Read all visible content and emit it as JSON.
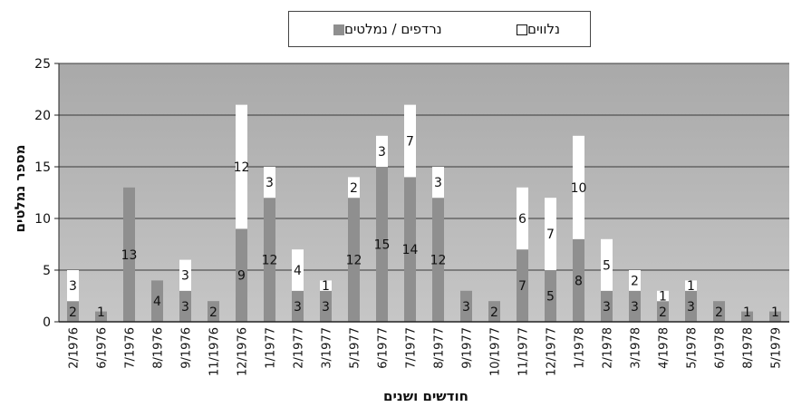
{
  "chart_data": {
    "type": "bar",
    "stacked": true,
    "title": "",
    "xlabel": "חודשים ושנים",
    "ylabel": "מספר נמלטים",
    "ylim": [
      0,
      25
    ],
    "yticks": [
      0,
      5,
      10,
      15,
      20,
      25
    ],
    "grid": true,
    "legend_position": "top-center",
    "categories": [
      "2/1976",
      "6/1976",
      "7/1976",
      "8/1976",
      "9/1976",
      "11/1976",
      "12/1976",
      "1/1977",
      "2/1977",
      "3/1977",
      "5/1977",
      "6/1977",
      "7/1977",
      "8/1977",
      "9/1977",
      "10/1977",
      "11/1977",
      "12/1977",
      "1/1978",
      "2/1978",
      "3/1978",
      "4/1978",
      "5/1978",
      "6/1978",
      "8/1978",
      "5/1979"
    ],
    "series": [
      {
        "name": "נרדפים / נמלטים",
        "color": "#8f8f8f",
        "values": [
          2,
          1,
          13,
          4,
          3,
          2,
          9,
          12,
          3,
          3,
          12,
          15,
          14,
          12,
          3,
          2,
          7,
          5,
          8,
          3,
          3,
          2,
          3,
          2,
          1,
          1
        ]
      },
      {
        "name": "נלווים",
        "color": "#ffffff",
        "values": [
          3,
          0,
          0,
          0,
          3,
          0,
          12,
          3,
          4,
          1,
          2,
          3,
          7,
          3,
          0,
          0,
          6,
          7,
          10,
          5,
          2,
          1,
          1,
          0,
          0,
          0
        ]
      }
    ]
  }
}
